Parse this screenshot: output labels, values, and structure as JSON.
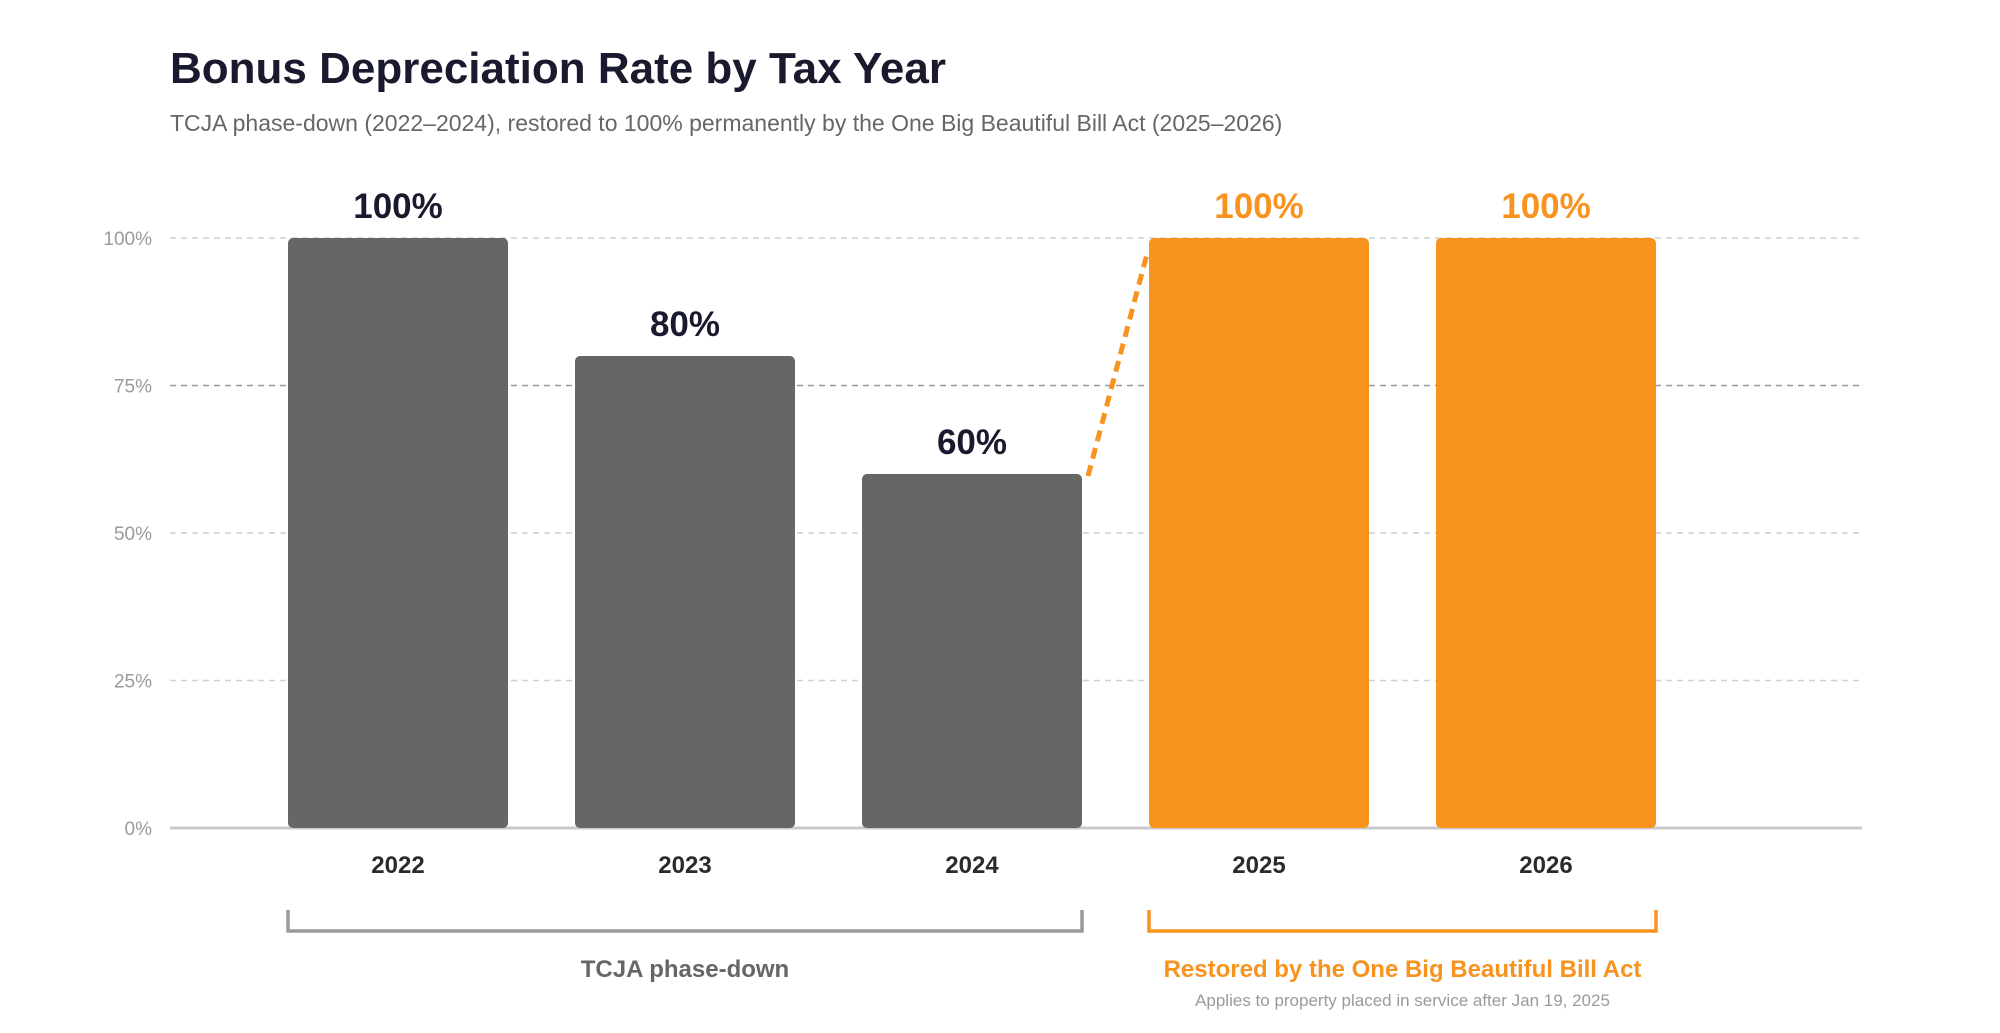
{
  "chart_data": {
    "type": "bar",
    "title": "Bonus Depreciation Rate by Tax Year",
    "subtitle": "TCJA phase-down (2022–2024), restored to 100% permanently by the One Big Beautiful Bill Act (2025–2026)",
    "categories": [
      "2022",
      "2023",
      "2024",
      "2025",
      "2026"
    ],
    "values": [
      100,
      80,
      60,
      100,
      100
    ],
    "value_labels": [
      "100%",
      "80%",
      "60%",
      "100%",
      "100%"
    ],
    "bar_groups": [
      "phase-down",
      "phase-down",
      "phase-down",
      "restored",
      "restored"
    ],
    "ylim": [
      0,
      100
    ],
    "yticks": [
      0,
      25,
      50,
      75,
      100
    ],
    "ytick_labels": [
      "0%",
      "25%",
      "50%",
      "75%",
      "100%"
    ],
    "grid": true,
    "groups": [
      {
        "key": "phase-down",
        "label": "TCJA phase-down",
        "note": "",
        "start": 0,
        "end": 2
      },
      {
        "key": "restored",
        "label": "Restored by the One Big Beautiful Bill Act",
        "note": "Applies to property placed in service after Jan 19, 2025",
        "start": 3,
        "end": 4
      }
    ]
  },
  "colors": {
    "phase_down": "#666666",
    "restored": "#f7931e",
    "phase_down_label": "#1a1a2e",
    "restored_label": "#f7931e",
    "phase_down_bracket": "#999999",
    "restored_bracket": "#f7931e",
    "phase_down_group_text": "#666666",
    "restored_group_text": "#f7931e"
  }
}
